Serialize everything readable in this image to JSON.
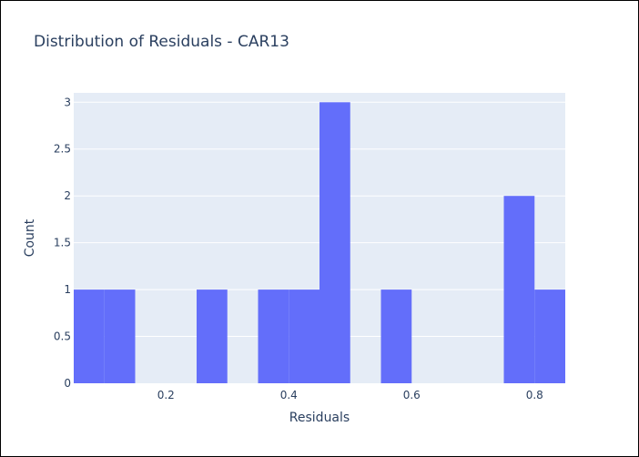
{
  "chart_data": {
    "type": "bar",
    "title": "Distribution of Residuals - CAR13",
    "xlabel": "Residuals",
    "ylabel": "Count",
    "bin_width": 0.05,
    "bins": [
      {
        "x0": 0.05,
        "x1": 0.1,
        "count": 1
      },
      {
        "x0": 0.1,
        "x1": 0.15,
        "count": 1
      },
      {
        "x0": 0.15,
        "x1": 0.2,
        "count": 0
      },
      {
        "x0": 0.2,
        "x1": 0.25,
        "count": 0
      },
      {
        "x0": 0.25,
        "x1": 0.3,
        "count": 1
      },
      {
        "x0": 0.3,
        "x1": 0.35,
        "count": 0
      },
      {
        "x0": 0.35,
        "x1": 0.4,
        "count": 1
      },
      {
        "x0": 0.4,
        "x1": 0.45,
        "count": 1
      },
      {
        "x0": 0.45,
        "x1": 0.5,
        "count": 3
      },
      {
        "x0": 0.5,
        "x1": 0.55,
        "count": 0
      },
      {
        "x0": 0.55,
        "x1": 0.6,
        "count": 1
      },
      {
        "x0": 0.6,
        "x1": 0.65,
        "count": 0
      },
      {
        "x0": 0.65,
        "x1": 0.7,
        "count": 0
      },
      {
        "x0": 0.7,
        "x1": 0.75,
        "count": 0
      },
      {
        "x0": 0.75,
        "x1": 0.8,
        "count": 2
      },
      {
        "x0": 0.8,
        "x1": 0.85,
        "count": 1
      }
    ],
    "xlim": [
      0.05,
      0.85
    ],
    "ylim": [
      0,
      3.1
    ],
    "x_ticks": [
      0.2,
      0.4,
      0.6,
      0.8
    ],
    "x_tick_labels": [
      "0.2",
      "0.4",
      "0.6",
      "0.8"
    ],
    "y_ticks": [
      0,
      0.5,
      1,
      1.5,
      2,
      2.5,
      3
    ],
    "y_tick_labels": [
      "0",
      "0.5",
      "1",
      "1.5",
      "2",
      "2.5",
      "3"
    ],
    "grid": true,
    "colors": {
      "bar": "#636efa",
      "plot_bg": "#e5ecf6",
      "grid": "#ffffff",
      "text": "#2a3f5f"
    }
  }
}
